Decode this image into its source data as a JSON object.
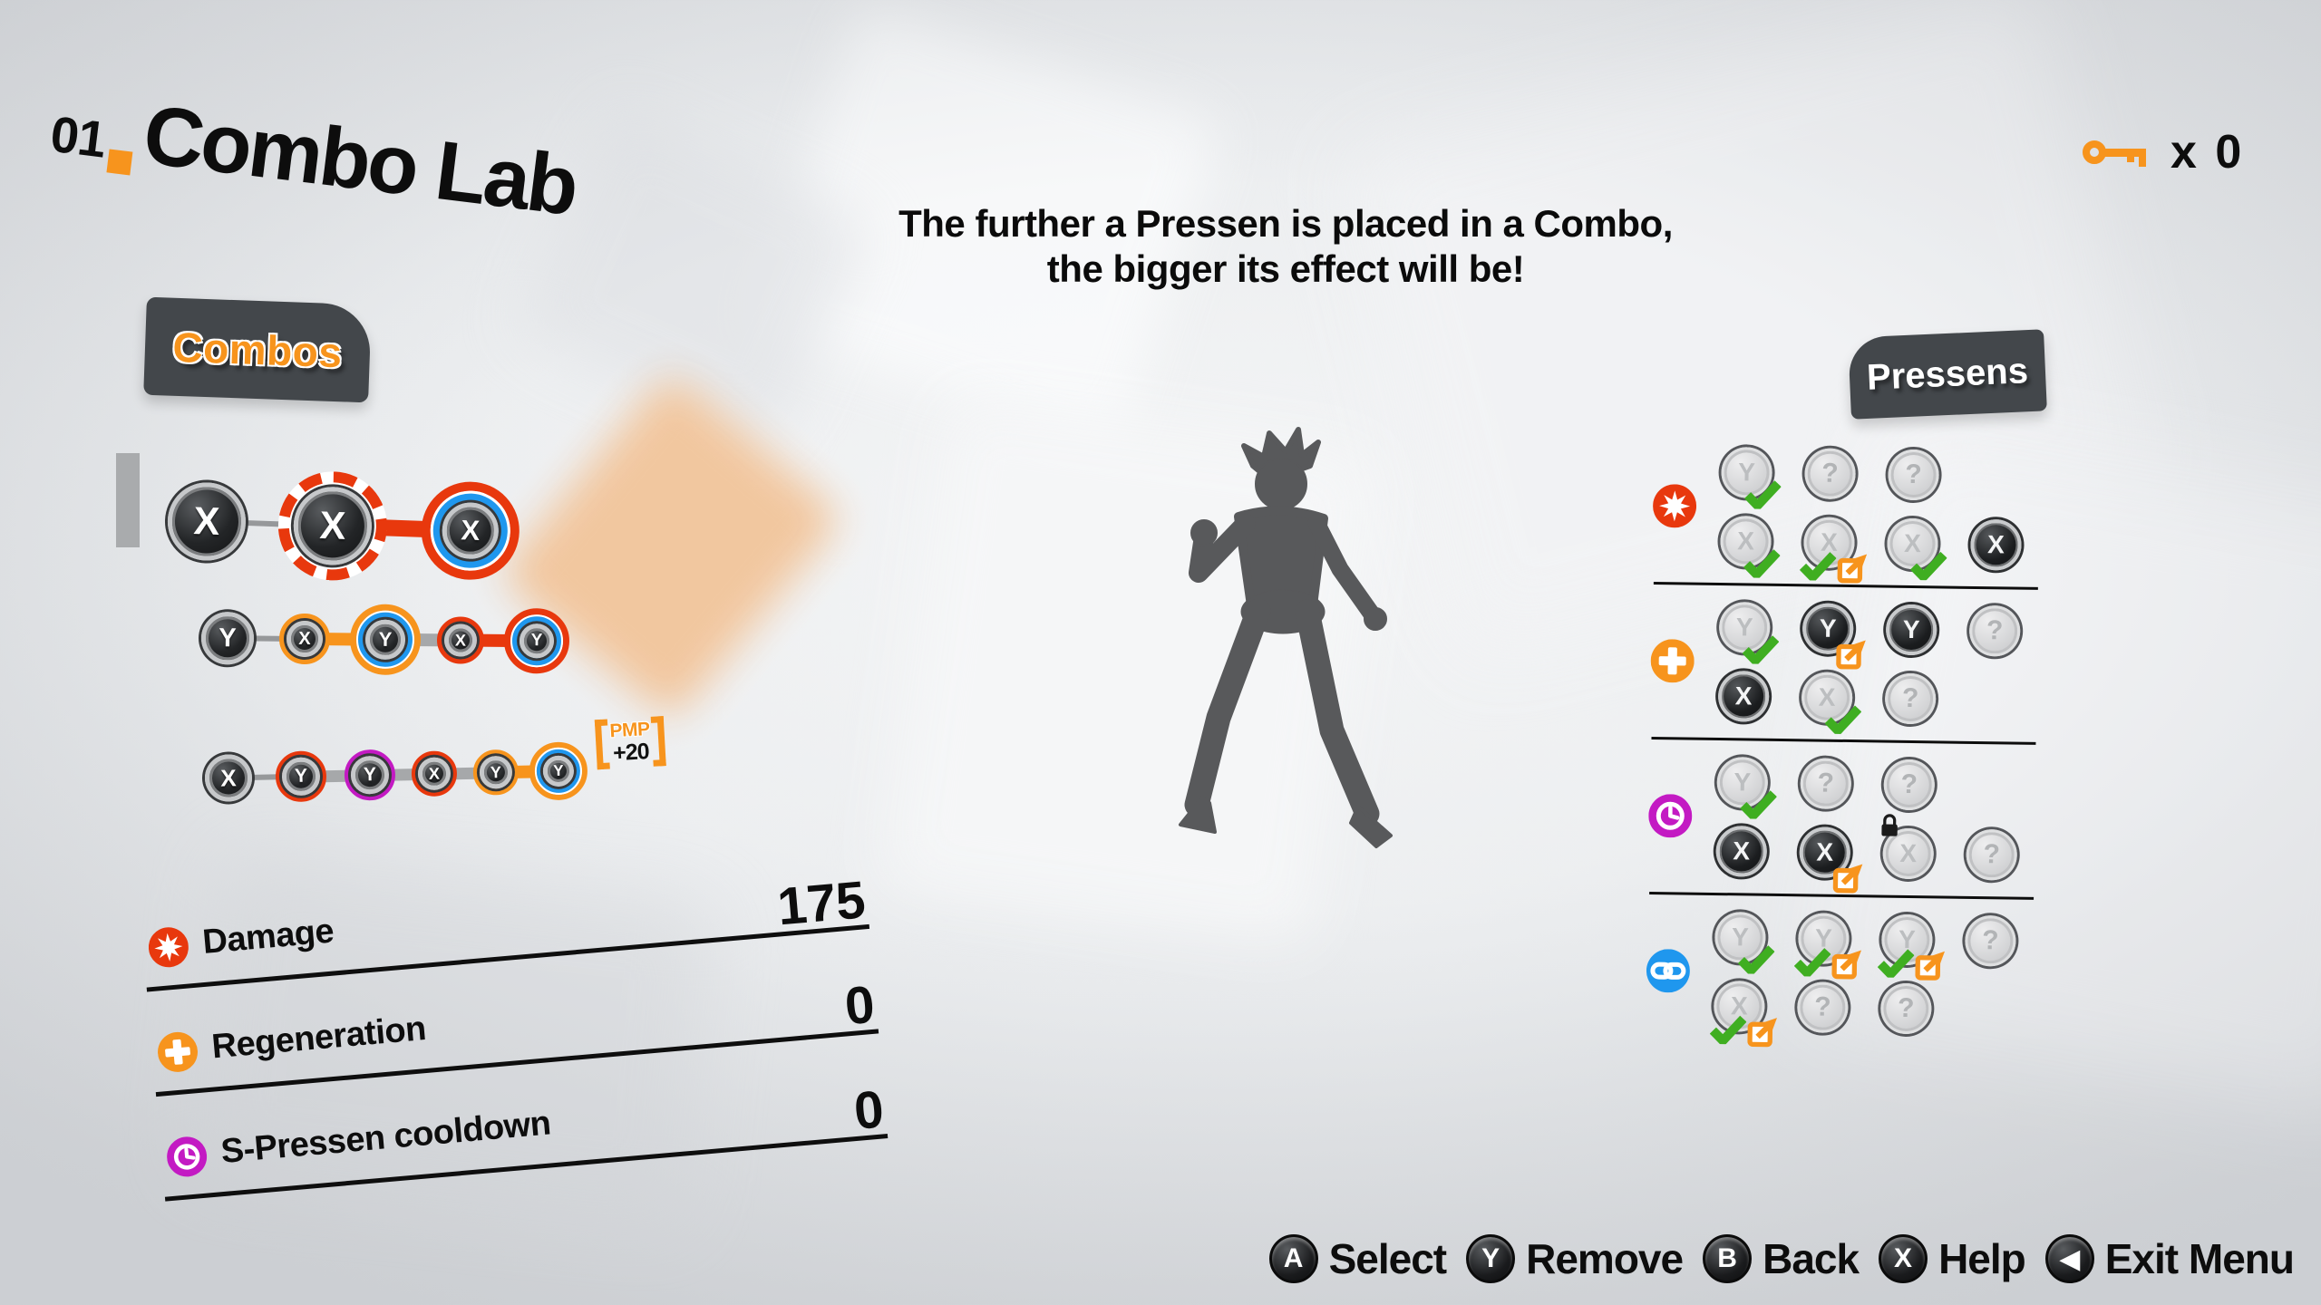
{
  "header": {
    "index": "01",
    "title": "Combo Lab"
  },
  "key_counter": {
    "icon": "key-icon",
    "label": "x 0"
  },
  "tip": {
    "line1": "The further a Pressen is placed in a Combo,",
    "line2": "the bigger its effect will be!"
  },
  "combos_panel": {
    "tab_label": "Combos",
    "rows": [
      {
        "buttons": [
          {
            "label": "X",
            "style": "plain"
          },
          {
            "label": "X",
            "style": "selected"
          },
          {
            "label": "X",
            "style": "blue-red"
          }
        ],
        "connectors": [
          "thin-gray",
          "thick-red"
        ]
      },
      {
        "buttons": [
          {
            "label": "Y",
            "style": "plain"
          },
          {
            "label": "X",
            "style": "orange"
          },
          {
            "label": "Y",
            "style": "blue-orange"
          },
          {
            "label": "X",
            "style": "red"
          },
          {
            "label": "Y",
            "style": "blue-red"
          }
        ],
        "connectors": [
          "thin-gray",
          "thick-orange",
          "thick-gray",
          "thick-red"
        ]
      },
      {
        "buttons": [
          {
            "label": "X",
            "style": "plain"
          },
          {
            "label": "Y",
            "style": "red"
          },
          {
            "label": "Y",
            "style": "purple"
          },
          {
            "label": "X",
            "style": "red"
          },
          {
            "label": "Y",
            "style": "orange"
          },
          {
            "label": "Y",
            "style": "blue-orange"
          }
        ],
        "connectors": [
          "thin-gray",
          "thick-gray",
          "thick-gray",
          "thick-gray",
          "thick-orange"
        ],
        "badge": {
          "label": "PMP",
          "value": "+20"
        }
      }
    ]
  },
  "stats": [
    {
      "icon": "damage-burst-icon",
      "color": "#e8380d",
      "label": "Damage",
      "value": "175"
    },
    {
      "icon": "regen-plus-icon",
      "color": "#f7941d",
      "label": "Regeneration",
      "value": "0"
    },
    {
      "icon": "cooldown-clock-icon",
      "color": "#c31ac3",
      "label": "S-Pressen cooldown",
      "value": "0"
    }
  ],
  "pressens_panel": {
    "tab_label": "Pressens",
    "groups": [
      {
        "icon": "damage-burst-icon",
        "color": "#e8380d",
        "rows": [
          [
            {
              "label": "Y",
              "state": "used",
              "check": true
            },
            {
              "label": "?",
              "state": "unknown"
            },
            {
              "label": "?",
              "state": "unknown"
            }
          ],
          [
            {
              "label": "X",
              "state": "used",
              "check": true
            },
            {
              "label": "X",
              "state": "used",
              "check": true,
              "upgrade": true
            },
            {
              "label": "X",
              "state": "used",
              "check": true
            },
            {
              "label": "X",
              "state": "owned"
            }
          ]
        ]
      },
      {
        "icon": "regen-plus-icon",
        "color": "#f7941d",
        "rows": [
          [
            {
              "label": "Y",
              "state": "used",
              "check": true
            },
            {
              "label": "Y",
              "state": "owned",
              "upgrade": true
            },
            {
              "label": "Y",
              "state": "owned"
            },
            {
              "label": "?",
              "state": "unknown"
            }
          ],
          [
            {
              "label": "X",
              "state": "owned"
            },
            {
              "label": "X",
              "state": "used",
              "check": true
            },
            {
              "label": "?",
              "state": "unknown"
            }
          ]
        ]
      },
      {
        "icon": "cooldown-clock-icon",
        "color": "#c31ac3",
        "rows": [
          [
            {
              "label": "Y",
              "state": "used",
              "check": true
            },
            {
              "label": "?",
              "state": "unknown"
            },
            {
              "label": "?",
              "state": "unknown"
            }
          ],
          [
            {
              "label": "X",
              "state": "owned"
            },
            {
              "label": "X",
              "state": "owned",
              "upgrade": true
            },
            {
              "label": "X",
              "state": "used",
              "lock": true
            },
            {
              "label": "?",
              "state": "unknown"
            }
          ]
        ]
      },
      {
        "icon": "chain-link-icon",
        "color": "#1f97ee",
        "rows": [
          [
            {
              "label": "Y",
              "state": "used",
              "check": true
            },
            {
              "label": "Y",
              "state": "used",
              "check": true,
              "upgrade": true
            },
            {
              "label": "Y",
              "state": "used",
              "check": true,
              "upgrade": true
            },
            {
              "label": "?",
              "state": "unknown"
            }
          ],
          [
            {
              "label": "X",
              "state": "used",
              "check": true,
              "upgrade": true
            },
            {
              "label": "?",
              "state": "unknown"
            },
            {
              "label": "?",
              "state": "unknown"
            }
          ]
        ]
      }
    ]
  },
  "legend": [
    {
      "button": "A",
      "label": "Select"
    },
    {
      "button": "Y",
      "label": "Remove"
    },
    {
      "button": "B",
      "label": "Back"
    },
    {
      "button": "X",
      "label": "Help"
    },
    {
      "button": "◀",
      "label": "Exit Menu"
    }
  ],
  "colors": {
    "orange": "#f7941d",
    "red": "#e8380d",
    "blue": "#1f97ee",
    "purple": "#c31ac3",
    "green": "#3fae21",
    "panel_gray": "#43474b",
    "ink": "#0d0d0d",
    "silhouette": "#58595b"
  }
}
